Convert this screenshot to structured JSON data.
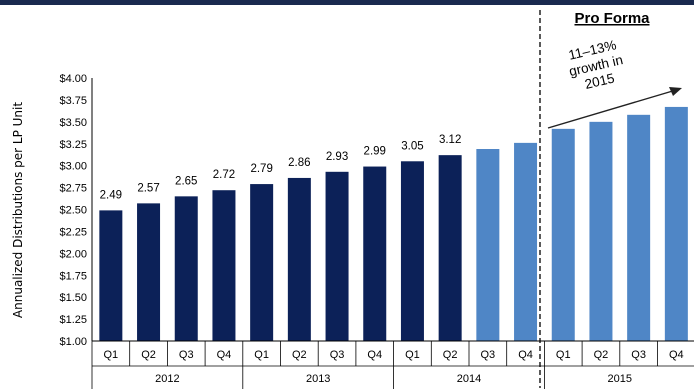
{
  "chart_data": {
    "type": "bar",
    "ylabel": "Annualized Distributions per LP Unit",
    "ylim": [
      1.0,
      4.0
    ],
    "yticks": [
      "$1.00",
      "$1.25",
      "$1.50",
      "$1.75",
      "$2.00",
      "$2.25",
      "$2.50",
      "$2.75",
      "$3.00",
      "$3.25",
      "$3.50",
      "$3.75",
      "$4.00"
    ],
    "ytick_values": [
      1.0,
      1.25,
      1.5,
      1.75,
      2.0,
      2.25,
      2.5,
      2.75,
      3.0,
      3.25,
      3.5,
      3.75,
      4.0
    ],
    "categories": [
      "Q1",
      "Q2",
      "Q3",
      "Q4",
      "Q1",
      "Q2",
      "Q3",
      "Q4",
      "Q1",
      "Q2",
      "Q3",
      "Q4",
      "Q1",
      "Q2",
      "Q3",
      "Q4"
    ],
    "years": [
      "2012",
      "2013",
      "2014",
      "2015"
    ],
    "values": [
      2.49,
      2.57,
      2.65,
      2.72,
      2.79,
      2.86,
      2.93,
      2.99,
      3.05,
      3.12,
      3.19,
      3.26,
      3.42,
      3.5,
      3.58,
      3.67
    ],
    "data_labels": [
      "2.49",
      "2.57",
      "2.65",
      "2.72",
      "2.79",
      "2.86",
      "2.93",
      "2.99",
      "3.05",
      "3.12",
      "",
      "",
      "",
      "",
      "",
      ""
    ],
    "colors": {
      "actual": "#0c2158",
      "projected": "#4f86c6",
      "border": "#1a2a4f"
    },
    "annotations": {
      "pro_forma": "Pro Forma",
      "growth_lines": [
        "11–13%",
        "growth in",
        "2015"
      ]
    }
  }
}
